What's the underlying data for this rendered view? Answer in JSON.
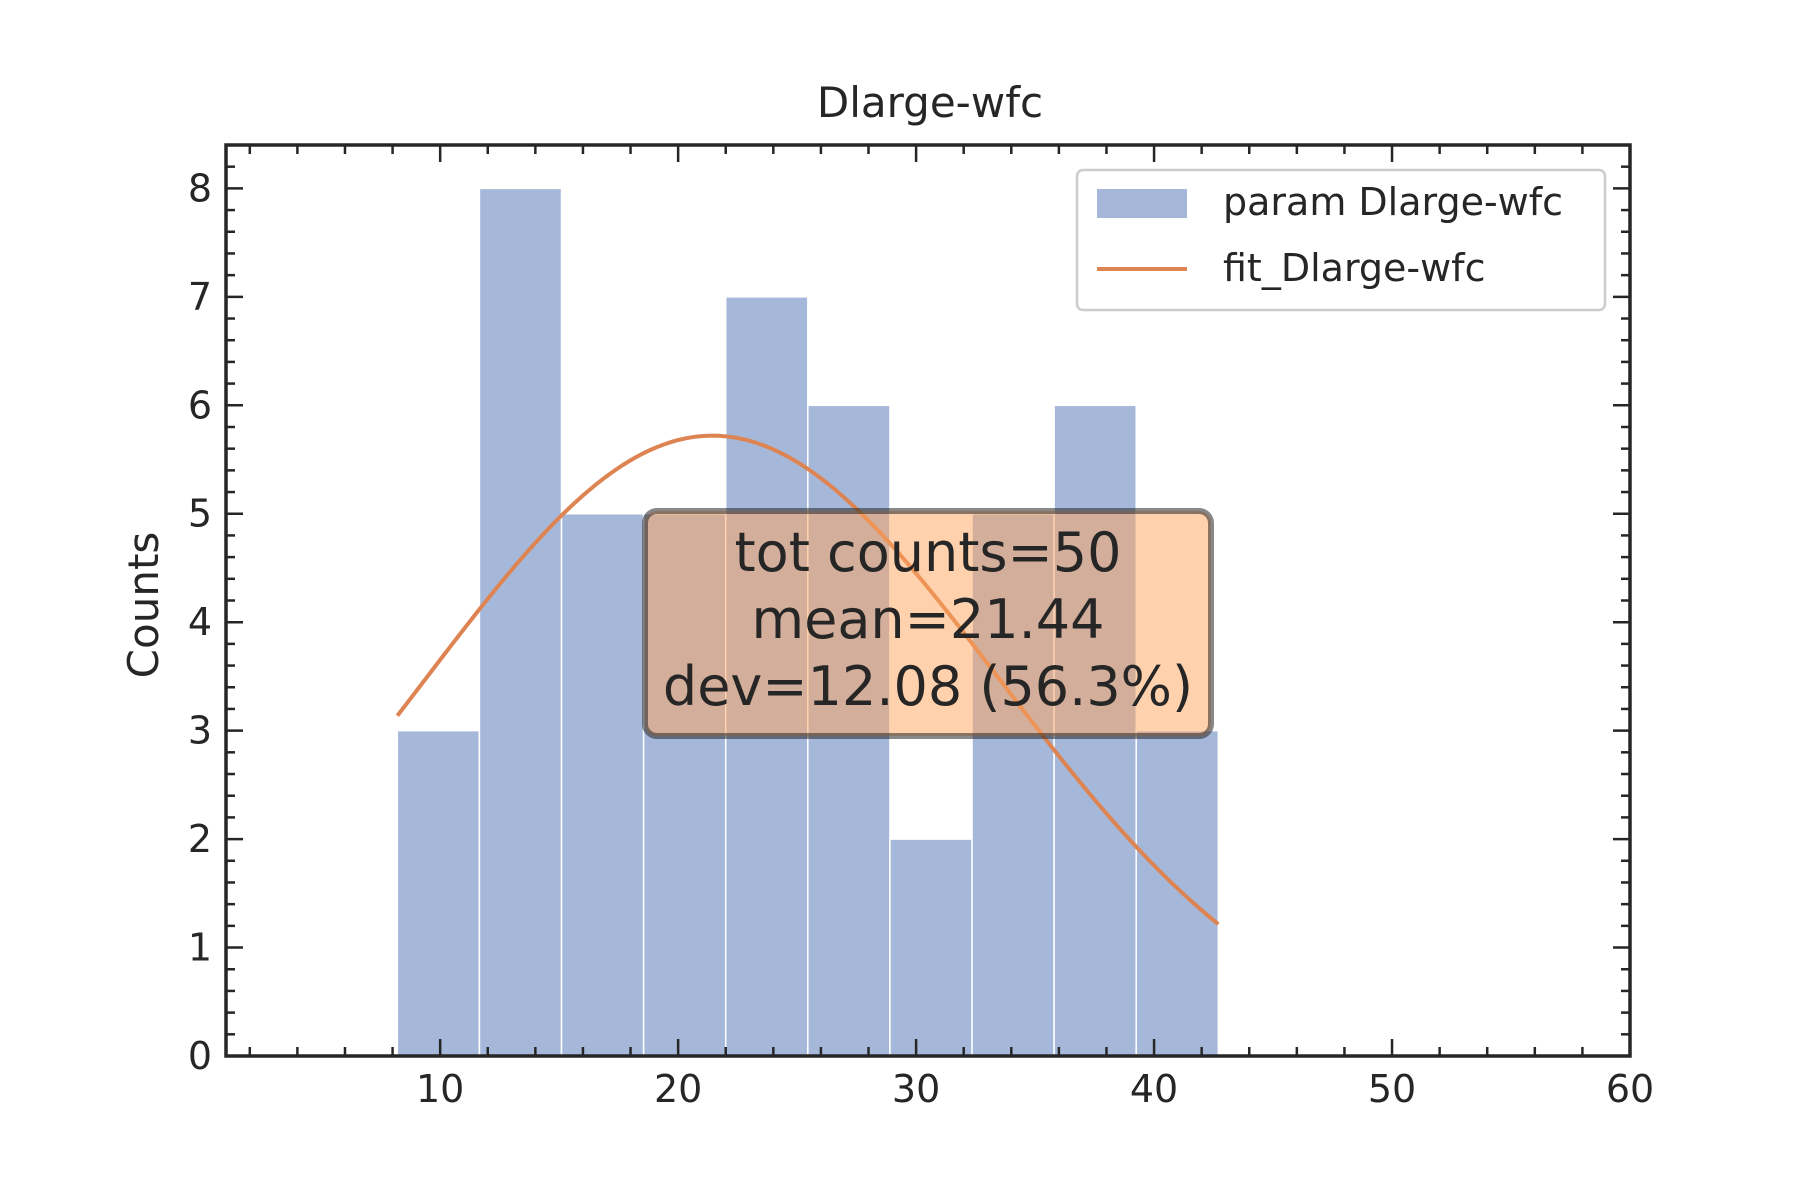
{
  "chart_data": {
    "type": "bar",
    "title": "Dlarge-wfc",
    "xlabel": "",
    "ylabel": "Counts",
    "xlim": [
      1,
      60
    ],
    "ylim": [
      0,
      8.4
    ],
    "xticks": [
      10,
      20,
      30,
      40,
      50,
      60
    ],
    "yticks": [
      0,
      1,
      2,
      3,
      4,
      5,
      6,
      7,
      8
    ],
    "bin_edges": [
      8.2,
      11.65,
      15.1,
      18.55,
      22.0,
      25.45,
      28.9,
      32.35,
      35.8,
      39.25,
      42.7
    ],
    "counts": [
      3,
      8,
      5,
      5,
      7,
      6,
      2,
      5,
      6,
      3
    ],
    "series": [
      {
        "name": "param Dlarge-wfc",
        "type": "bar",
        "color": "#a6b8d9"
      },
      {
        "name": "fit_Dlarge-wfc",
        "type": "line",
        "color": "#dd8452",
        "mean": 21.44,
        "sigma": 12.08,
        "peak": 5.72,
        "x_range": [
          8.2,
          42.7
        ]
      }
    ],
    "legend": {
      "position": "top-right",
      "entries": [
        "param Dlarge-wfc",
        "fit_Dlarge-wfc"
      ]
    },
    "annotation": {
      "lines": [
        "tot counts=50",
        "mean=21.44",
        "dev=12.08 (56.3%)"
      ],
      "color": "#ffa45c"
    },
    "grid": false
  }
}
